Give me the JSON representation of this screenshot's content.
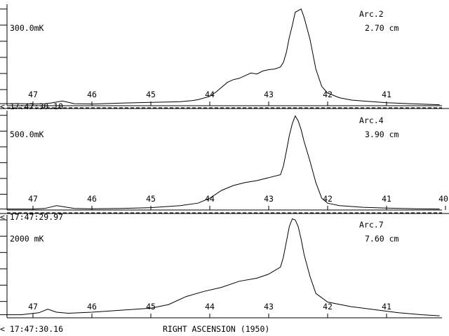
{
  "x_axis_label": "RIGHT ASCENSION (1950)",
  "chart_data": [
    {
      "type": "line",
      "arc": "Arc.2",
      "wavelength": "2.70 cm",
      "scale_label": "300.0mK",
      "time_label": "< 17:47:30.10",
      "x_ticks": [
        "47",
        "46",
        "45",
        "44",
        "43",
        "42",
        "41"
      ],
      "y_range_mK": [
        0,
        300
      ],
      "series": [
        {
          "x": [
            47.65,
            47.2,
            47.0,
            46.8,
            46.7,
            46.5,
            46.3,
            46.0,
            45.5,
            45.0,
            44.5,
            44.3,
            44.2,
            44.0,
            43.9,
            43.8,
            43.7,
            43.6,
            43.5,
            43.4,
            43.3,
            43.2,
            43.1,
            43.0,
            42.9,
            42.8,
            42.75,
            42.7,
            42.65,
            42.6,
            42.55,
            42.5,
            42.45,
            42.4,
            42.3,
            42.2,
            42.1,
            42.0,
            41.8,
            41.6,
            41.4,
            41.0,
            40.6,
            40.1
          ],
          "y": [
            6,
            6,
            5,
            6,
            8,
            14,
            6,
            5,
            8,
            10,
            12,
            15,
            18,
            28,
            40,
            55,
            70,
            78,
            82,
            90,
            98,
            95,
            104,
            108,
            110,
            116,
            130,
            160,
            205,
            240,
            280,
            285,
            290,
            265,
            200,
            110,
            58,
            38,
            24,
            17,
            14,
            9,
            6,
            3
          ]
        }
      ]
    },
    {
      "type": "line",
      "arc": "Arc.4",
      "wavelength": "3.90 cm",
      "scale_label": "500.0mK",
      "time_label": "< 17:47:29.97",
      "x_ticks": [
        "47",
        "46",
        "45",
        "44",
        "43",
        "42",
        "41",
        "40"
      ],
      "y_range_mK": [
        0,
        500
      ],
      "series": [
        {
          "x": [
            47.65,
            47.3,
            47.0,
            46.8,
            46.7,
            46.6,
            46.3,
            46.0,
            45.5,
            45.0,
            44.5,
            44.2,
            44.0,
            43.8,
            43.6,
            43.4,
            43.2,
            43.0,
            42.8,
            42.75,
            42.7,
            42.65,
            42.6,
            42.55,
            42.5,
            42.45,
            42.4,
            42.3,
            42.2,
            42.1,
            42.0,
            41.8,
            41.4,
            41.0,
            40.5,
            40.1
          ],
          "y": [
            5,
            5,
            5,
            8,
            15,
            22,
            8,
            6,
            8,
            12,
            22,
            35,
            60,
            100,
            125,
            140,
            150,
            165,
            180,
            225,
            300,
            380,
            440,
            480,
            455,
            410,
            350,
            250,
            140,
            60,
            35,
            22,
            14,
            10,
            6,
            5
          ]
        }
      ]
    },
    {
      "type": "line",
      "arc": "Arc.7",
      "wavelength": "7.60 cm",
      "scale_label": "2000 mK",
      "time_label": "< 17:47:30.16",
      "x_ticks": [
        "47",
        "46",
        "45",
        "44",
        "43",
        "42",
        "41"
      ],
      "y_range_mK": [
        0,
        2000
      ],
      "series": [
        {
          "x": [
            47.65,
            47.2,
            46.9,
            46.75,
            46.6,
            46.4,
            46.0,
            45.5,
            45.0,
            44.7,
            44.4,
            44.1,
            43.8,
            43.5,
            43.2,
            43.0,
            42.8,
            42.75,
            42.7,
            42.65,
            42.6,
            42.55,
            42.5,
            42.45,
            42.4,
            42.3,
            42.2,
            42.0,
            41.6,
            41.2,
            40.8,
            40.4,
            40.1
          ],
          "y": [
            60,
            60,
            100,
            170,
            110,
            90,
            110,
            150,
            190,
            260,
            420,
            520,
            600,
            720,
            780,
            860,
            1000,
            1200,
            1500,
            1800,
            1950,
            1930,
            1800,
            1550,
            1250,
            820,
            480,
            310,
            220,
            160,
            100,
            60,
            40
          ]
        }
      ]
    }
  ]
}
